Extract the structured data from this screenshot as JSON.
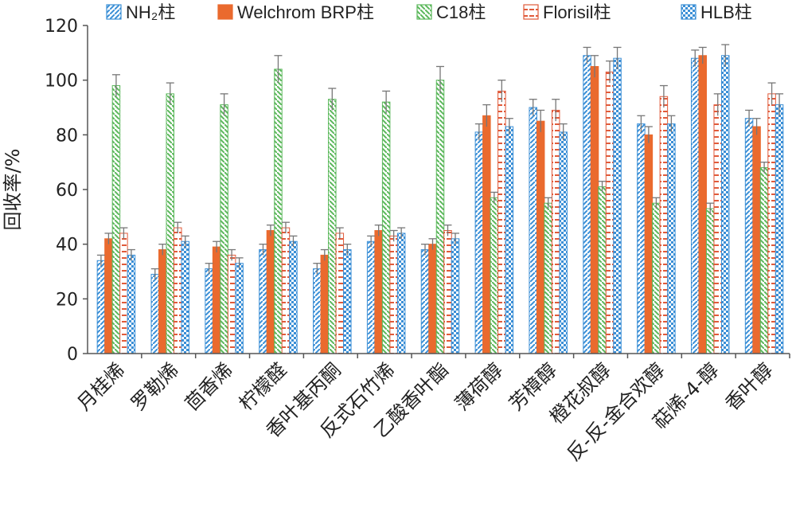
{
  "chart_data": {
    "type": "bar",
    "ylabel": "回收率/%",
    "xlabel": "",
    "ylim": [
      0,
      120
    ],
    "yticks": [
      "0",
      "20",
      "40",
      "60",
      "80",
      "100",
      "120"
    ],
    "grid": false,
    "legend_position": "top",
    "categories": [
      "月桂烯",
      "罗勒烯",
      "茴香烯",
      "柠檬醛",
      "香叶基丙酮",
      "反式石竹烯",
      "乙酸香叶酯",
      "薄荷醇",
      "芳樟醇",
      "橙花叔醇",
      "反-反-金合欢醇",
      "萜烯-4-醇",
      "香叶醇"
    ],
    "series": [
      {
        "name": "NH₂柱",
        "color": "#3b8fd6",
        "pattern": "diag",
        "values": [
          34,
          29,
          31,
          38,
          31,
          41,
          38,
          81,
          90,
          109,
          84,
          108,
          86
        ],
        "errors": [
          2,
          2,
          2,
          2,
          2,
          2,
          2,
          3,
          3,
          3,
          3,
          3,
          3
        ]
      },
      {
        "name": "Welchrom BRP柱",
        "color": "#ea6a2e",
        "pattern": "solid",
        "values": [
          42,
          38,
          39,
          45,
          36,
          45,
          40,
          87,
          85,
          105,
          80,
          109,
          83
        ],
        "errors": [
          2,
          2,
          2,
          2,
          2,
          2,
          2,
          4,
          4,
          4,
          3,
          3,
          3
        ]
      },
      {
        "name": "C18柱",
        "color": "#5cb85c",
        "pattern": "diag-green",
        "values": [
          98,
          95,
          91,
          104,
          93,
          92,
          100,
          57,
          55,
          61,
          55,
          53,
          68
        ],
        "errors": [
          4,
          4,
          4,
          5,
          4,
          4,
          5,
          2,
          2,
          2,
          2,
          2,
          2
        ]
      },
      {
        "name": "Florisil柱",
        "color": "#e05a3a",
        "pattern": "dash-red",
        "values": [
          44,
          46,
          36,
          46,
          44,
          43,
          45,
          96,
          89,
          103,
          94,
          91,
          95
        ],
        "errors": [
          2,
          2,
          2,
          2,
          2,
          2,
          2,
          4,
          4,
          4,
          4,
          4,
          4
        ]
      },
      {
        "name": "HLB柱",
        "color": "#3b8fd6",
        "pattern": "checker",
        "values": [
          36,
          41,
          33,
          41,
          38,
          44,
          42,
          83,
          81,
          108,
          84,
          109,
          91
        ],
        "errors": [
          2,
          2,
          2,
          2,
          2,
          2,
          2,
          3,
          3,
          4,
          3,
          4,
          4
        ]
      }
    ]
  }
}
